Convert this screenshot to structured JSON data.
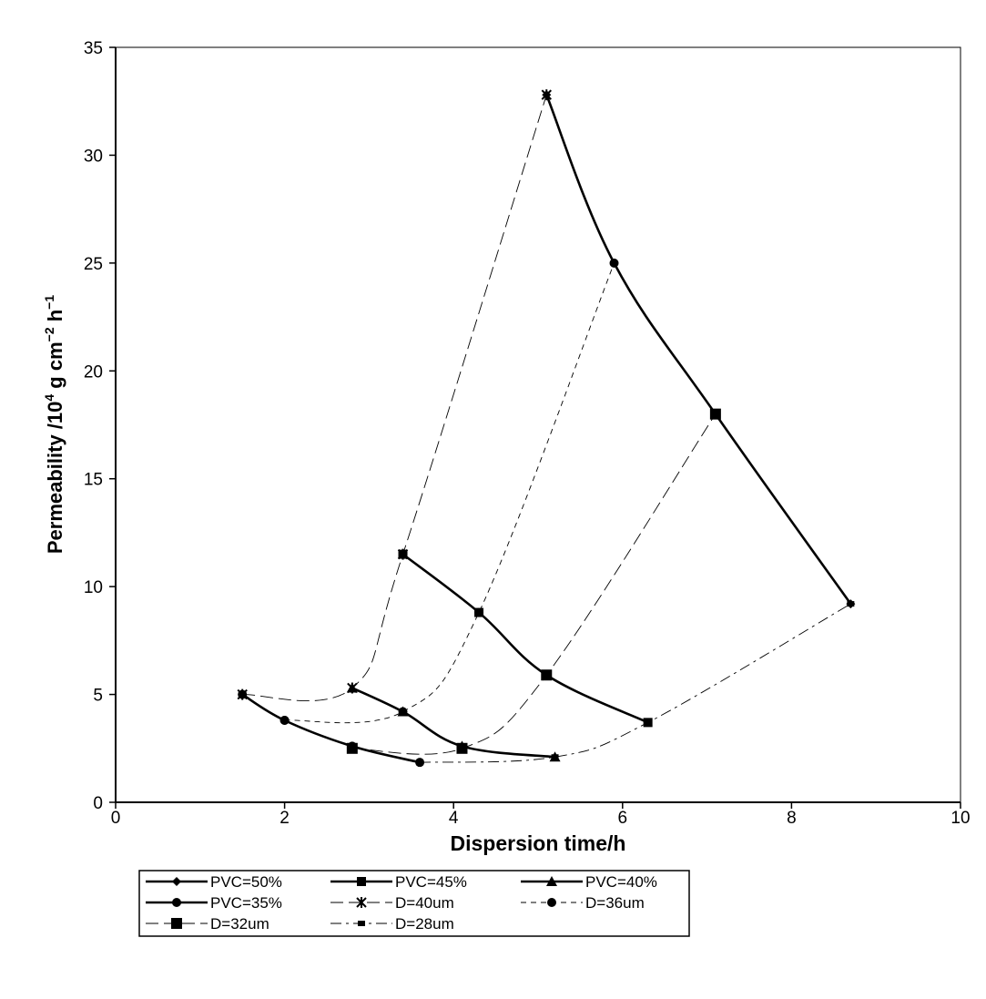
{
  "chart_data": {
    "type": "line",
    "title": "",
    "xlabel": "Dispersion time/h",
    "ylabel": "Permeability /10{4} g cm{-2} h{-1}",
    "ylabel_parts": [
      "Permeability /10",
      "4",
      " g cm",
      "−2",
      " h",
      "−1"
    ],
    "xlim": [
      0,
      10
    ],
    "ylim": [
      0,
      35
    ],
    "xticks": [
      0,
      2,
      4,
      6,
      8,
      10
    ],
    "yticks": [
      0,
      5,
      10,
      15,
      20,
      25,
      30,
      35
    ],
    "grid": false,
    "legend_position": "bottom",
    "series": [
      {
        "name": "PVC=50%",
        "style": "solid",
        "marker": "diamond",
        "x": [
          5.1,
          5.9,
          7.1,
          8.7
        ],
        "y": [
          32.8,
          25.0,
          18.0,
          9.2
        ]
      },
      {
        "name": "PVC=45%",
        "style": "solid",
        "marker": "square",
        "x": [
          3.4,
          4.3,
          5.1,
          6.3
        ],
        "y": [
          11.5,
          8.8,
          5.9,
          3.7
        ]
      },
      {
        "name": "PVC=40%",
        "style": "solid",
        "marker": "triangle",
        "x": [
          2.8,
          3.4,
          4.1,
          5.2
        ],
        "y": [
          5.3,
          4.2,
          2.6,
          2.1
        ]
      },
      {
        "name": "PVC=35%",
        "style": "solid",
        "marker": "circle",
        "x": [
          1.5,
          2.0,
          2.8,
          3.6
        ],
        "y": [
          5.0,
          3.8,
          2.6,
          1.85
        ]
      },
      {
        "name": "D=40um",
        "style": "longdash",
        "marker": "star",
        "x": [
          1.5,
          2.8,
          3.4,
          5.1
        ],
        "y": [
          5.0,
          5.3,
          11.5,
          32.8
        ]
      },
      {
        "name": "D=36um",
        "style": "dash",
        "marker": "circle",
        "x": [
          2.0,
          3.4,
          4.3,
          5.9
        ],
        "y": [
          3.8,
          4.2,
          8.8,
          25.0
        ]
      },
      {
        "name": "D=32um",
        "style": "longdash",
        "marker": "bigsquare",
        "x": [
          2.8,
          4.1,
          5.1,
          7.1
        ],
        "y": [
          2.5,
          2.5,
          5.9,
          18.0
        ]
      },
      {
        "name": "D=28um",
        "style": "dashdot",
        "marker": "smallsquare",
        "x": [
          3.6,
          5.2,
          6.3,
          8.7
        ],
        "y": [
          1.85,
          2.1,
          3.7,
          9.2
        ]
      }
    ]
  }
}
